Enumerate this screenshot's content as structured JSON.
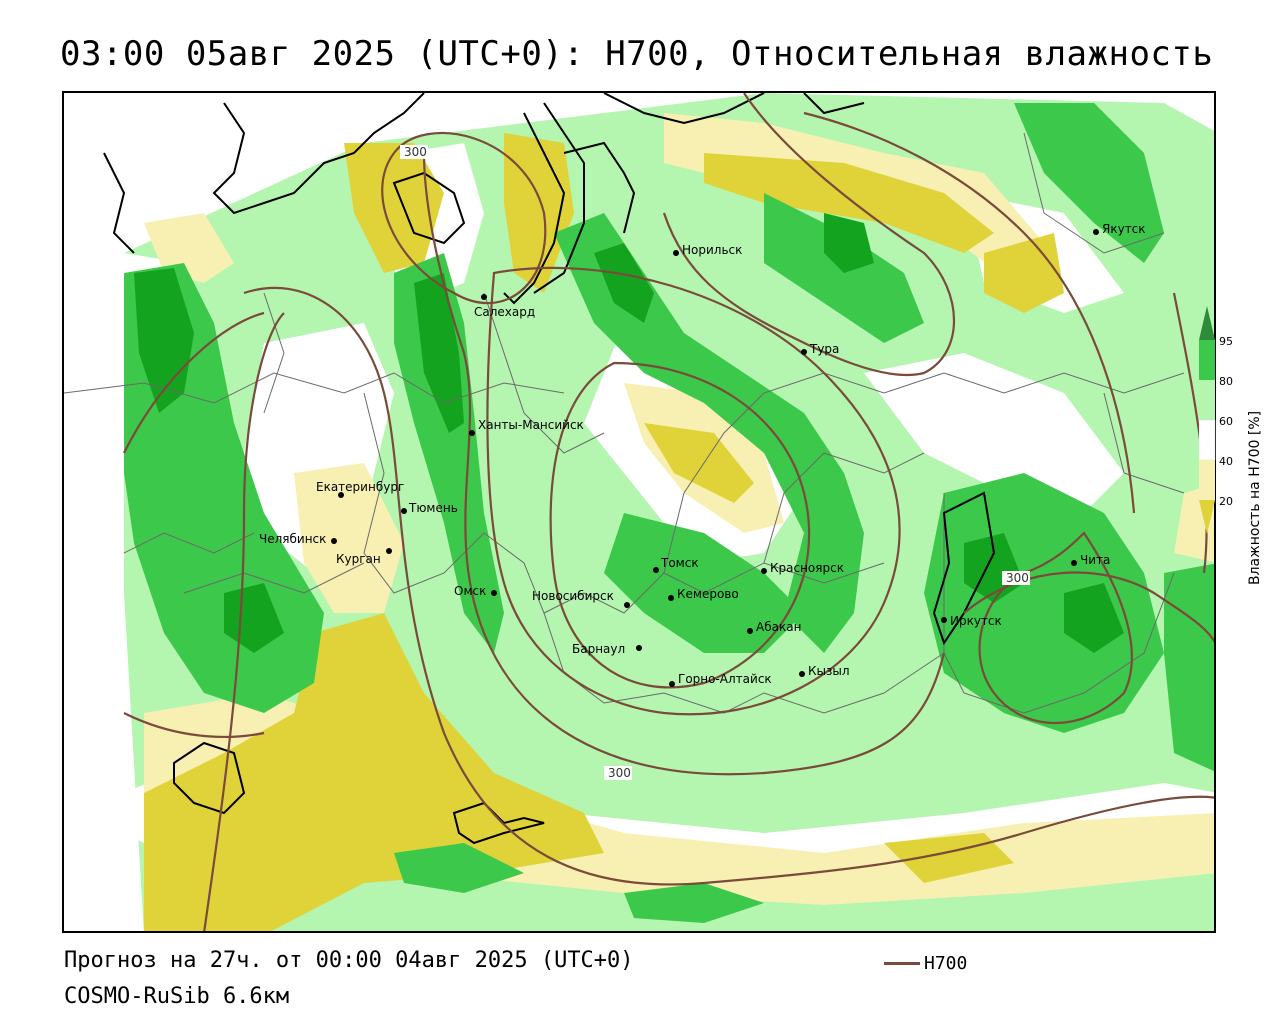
{
  "header": {
    "title": "03:00 05авг 2025 (UTC+0): H700, Относительная влажность"
  },
  "footer": {
    "forecast": "Прогноз на 27ч. от 00:00 04авг 2025 (UTC+0)",
    "model": "COSMO-RuSib 6.6км",
    "h700_legend": "H700"
  },
  "colorbar": {
    "title": "Влажность на H700 [%]",
    "ticks": [
      "95",
      "80",
      "60",
      "40",
      "20"
    ],
    "colors": {
      "above_95": "#2e8b3a",
      "80_95": "#3cc84a",
      "60_80": "#b4f5b0",
      "40_60": "#ffffff",
      "20_40": "#f7f0b2",
      "below_20": "#e0d33a"
    }
  },
  "isohypse_labels": [
    "300",
    "300",
    "300"
  ],
  "cities": [
    {
      "name": "Якутск"
    },
    {
      "name": "Норильск"
    },
    {
      "name": "Салехард"
    },
    {
      "name": "Тура"
    },
    {
      "name": "Ханты-Мансийск"
    },
    {
      "name": "Екатеринбург"
    },
    {
      "name": "Тюмень"
    },
    {
      "name": "Челябинск"
    },
    {
      "name": "Курган"
    },
    {
      "name": "Омск"
    },
    {
      "name": "Томск"
    },
    {
      "name": "Красноярск"
    },
    {
      "name": "Новосибирск"
    },
    {
      "name": "Кемерово"
    },
    {
      "name": "Абакан"
    },
    {
      "name": "Барнаул"
    },
    {
      "name": "Горно-Алтайск"
    },
    {
      "name": "Кызыл"
    },
    {
      "name": "Иркутск"
    },
    {
      "name": "Чита"
    }
  ]
}
